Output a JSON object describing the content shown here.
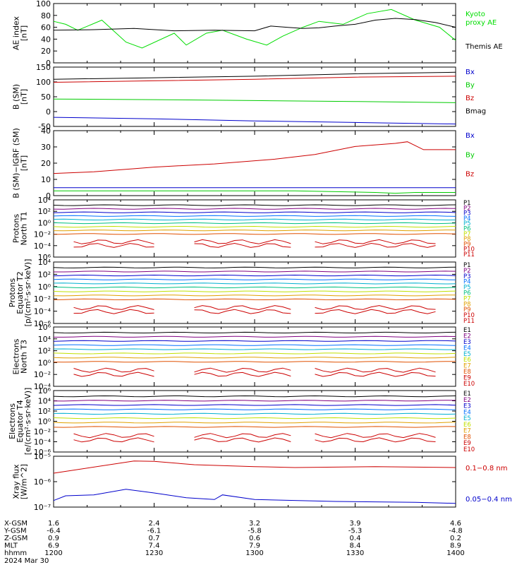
{
  "date_label": "2024 Mar 30",
  "x_axis": {
    "categories": [
      "1200",
      "1230",
      "1300",
      "1330",
      "1400"
    ],
    "rows": [
      {
        "label": "X-GSM",
        "values": [
          "1.6",
          "2.4",
          "3.2",
          "3.9",
          "4.6"
        ]
      },
      {
        "label": "Y-GSM",
        "values": [
          "-6.4",
          "-6.1",
          "-5.8",
          "-5.3",
          "-4.8"
        ]
      },
      {
        "label": "Z-GSM",
        "values": [
          "0.9",
          "0.7",
          "0.6",
          "0.4",
          "0.2"
        ]
      },
      {
        "label": "MLT",
        "values": [
          "6.9",
          "7.4",
          "7.9",
          "8.4",
          "8.9"
        ]
      },
      {
        "label": "hhmm",
        "values": [
          "1200",
          "1230",
          "1300",
          "1330",
          "1400"
        ]
      }
    ]
  },
  "chart_data": [
    {
      "type": "line",
      "ylabel": [
        "AE index",
        "[nT]"
      ],
      "ylim": [
        0,
        100
      ],
      "y_ticks": [
        "0",
        "20",
        "40",
        "60",
        "80",
        "100"
      ],
      "series": [
        {
          "name": "Kyoto\nproxy AE",
          "color": "#00dd00",
          "x": [
            0,
            3,
            6,
            12,
            18,
            22,
            30,
            33,
            38,
            42,
            48,
            53,
            57,
            62,
            66,
            72,
            78,
            84,
            90,
            96,
            100
          ],
          "values": [
            70,
            65,
            55,
            72,
            35,
            25,
            50,
            30,
            50,
            55,
            40,
            30,
            45,
            60,
            70,
            65,
            83,
            90,
            72,
            60,
            38
          ]
        },
        {
          "name": "Themis AE",
          "color": "#000000",
          "x": [
            0,
            10,
            20,
            30,
            40,
            50,
            54,
            58,
            62,
            66,
            70,
            75,
            80,
            85,
            90,
            95,
            100
          ],
          "values": [
            55,
            56,
            58,
            54,
            55,
            54,
            62,
            60,
            58,
            59,
            62,
            65,
            72,
            75,
            73,
            68,
            60
          ]
        }
      ]
    },
    {
      "type": "line",
      "ylabel": [
        "B (SM)",
        "[nT]"
      ],
      "ylim": [
        -40,
        155
      ],
      "y_ticks": [
        "-50",
        "0",
        "50",
        "100",
        "150"
      ],
      "series": [
        {
          "name": "Bx",
          "color": "#0000cc",
          "x": [
            0,
            25,
            50,
            75,
            100
          ],
          "values": [
            -10,
            -15,
            -22,
            -27,
            -32
          ]
        },
        {
          "name": "By",
          "color": "#00cc00",
          "x": [
            0,
            25,
            50,
            75,
            100
          ],
          "values": [
            50,
            48,
            45,
            42,
            38
          ]
        },
        {
          "name": "Bz",
          "color": "#cc0000",
          "x": [
            0,
            25,
            50,
            75,
            100
          ],
          "values": [
            105,
            110,
            115,
            122,
            125
          ]
        },
        {
          "name": "Bmag",
          "color": "#000000",
          "x": [
            0,
            25,
            50,
            75,
            100
          ],
          "values": [
            115,
            120,
            125,
            133,
            138
          ]
        }
      ]
    },
    {
      "type": "line",
      "ylabel": [
        "B (SM)−IGRF (SM)",
        "[nT]"
      ],
      "ylim": [
        -1,
        40
      ],
      "y_ticks": [
        "0",
        "10",
        "20",
        "30",
        "40"
      ],
      "series": [
        {
          "name": "Bx",
          "color": "#0000cc",
          "x": [
            0,
            25,
            50,
            75,
            100
          ],
          "values": [
            4,
            4,
            4,
            4,
            4
          ]
        },
        {
          "name": "By",
          "color": "#00cc00",
          "x": [
            0,
            20,
            40,
            60,
            80,
            85,
            90,
            100
          ],
          "values": [
            2,
            2,
            2,
            2,
            1,
            0.5,
            1,
            1
          ]
        },
        {
          "name": "Bz",
          "color": "#cc0000",
          "x": [
            0,
            10,
            20,
            25,
            40,
            55,
            65,
            75,
            85,
            88,
            92,
            100
          ],
          "values": [
            13,
            14,
            16,
            17,
            19,
            22,
            25,
            30,
            32,
            33,
            28,
            28
          ]
        }
      ]
    },
    {
      "type": "line",
      "ylabel": [
        "Protons",
        "North T1"
      ],
      "y_ticks": [
        "10⁶",
        "10⁻⁴",
        "10⁻²",
        "10⁰",
        "10²",
        "10⁴"
      ],
      "labels": [
        "P1",
        "P2",
        "P3",
        "P4",
        "P5",
        "P6",
        "P7",
        "P8",
        "P9",
        "P10",
        "P11"
      ]
    },
    {
      "type": "line",
      "ylabel": [
        "Protons",
        "Equator T2",
        "[p/(cm²·s·sr·keV)]"
      ],
      "y_ticks": [
        "10⁻⁶",
        "10⁻⁴",
        "10⁻²",
        "10⁰",
        "10²",
        "10⁴"
      ],
      "labels": [
        "P1",
        "P2",
        "P3",
        "P4",
        "P5",
        "P6",
        "P7",
        "P8",
        "P9",
        "P10",
        "P11"
      ]
    },
    {
      "type": "line",
      "ylabel": [
        "Electrons",
        "North T3"
      ],
      "y_ticks": [
        "10⁻⁴",
        "10⁻²",
        "10⁰",
        "10²",
        "10⁴",
        "10⁶"
      ],
      "labels": [
        "E1",
        "E2",
        "E3",
        "E4",
        "E5",
        "E6",
        "E7",
        "E8",
        "E9",
        "E10"
      ]
    },
    {
      "type": "line",
      "ylabel": [
        "Electrons",
        "Equator T4",
        "[e/(cm²·s·sr·keV)]"
      ],
      "y_ticks": [
        "10⁻⁶",
        "10⁻⁴",
        "10⁻²",
        "10⁰",
        "10²",
        "10⁴",
        "10⁶"
      ],
      "labels": [
        "E1",
        "E2",
        "E3",
        "E4",
        "E5",
        "E6",
        "E7",
        "E8",
        "E9",
        "E10"
      ]
    },
    {
      "type": "line",
      "ylabel": [
        "Xray flux",
        "[W/m^2]"
      ],
      "y_ticks": [
        "10⁻⁷",
        "10⁻⁶",
        "10⁻⁵"
      ],
      "series": [
        {
          "name": "0.1−0.8 nm",
          "color": "#cc0000",
          "x": [
            0,
            20,
            25,
            35,
            50,
            60,
            80,
            100
          ],
          "values": [
            -5.7,
            -5.05,
            -5.07,
            -5.25,
            -5.35,
            -5.4,
            -5.35,
            -5.4
          ]
        },
        {
          "name": "0.05−0.4 nm",
          "color": "#0000cc",
          "x": [
            0,
            3,
            10,
            18,
            25,
            33,
            40,
            42,
            50,
            70,
            90,
            100
          ],
          "values": [
            -7.15,
            -6.9,
            -6.85,
            -6.55,
            -6.75,
            -7.0,
            -7.1,
            -6.85,
            -7.1,
            -7.2,
            -7.25,
            -7.3
          ]
        }
      ]
    }
  ]
}
